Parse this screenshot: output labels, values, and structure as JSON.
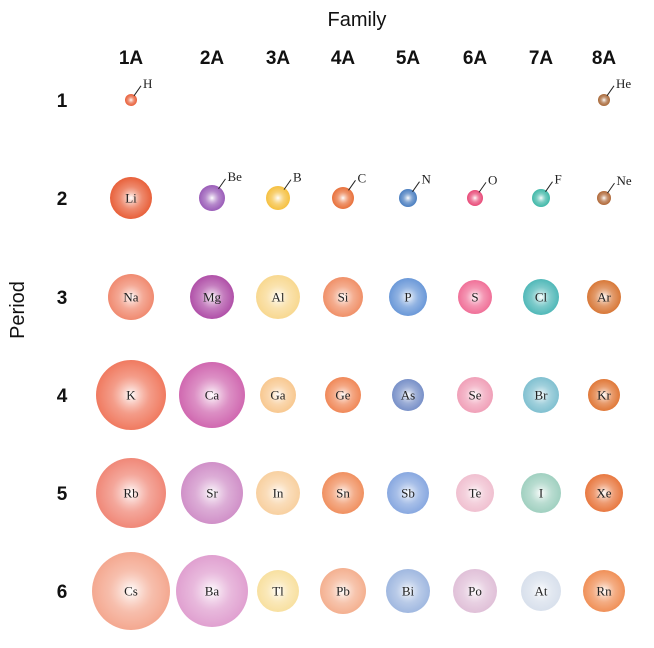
{
  "x_axis_title": "Family",
  "y_axis_title": "Period",
  "families": [
    "1A",
    "2A",
    "3A",
    "4A",
    "5A",
    "6A",
    "7A",
    "8A"
  ],
  "periods": [
    "1",
    "2",
    "3",
    "4",
    "5",
    "6"
  ],
  "elements": [
    [
      {
        "symbol": "H",
        "color": "#e8603a"
      },
      null,
      null,
      null,
      null,
      null,
      null,
      {
        "symbol": "He",
        "color": "#a86838"
      }
    ],
    [
      {
        "symbol": "Li",
        "color": "#e8603a"
      },
      {
        "symbol": "Be",
        "color": "#9a5cb8"
      },
      {
        "symbol": "B",
        "color": "#f5c040"
      },
      {
        "symbol": "C",
        "color": "#e8703a"
      },
      {
        "symbol": "N",
        "color": "#4a7ec0"
      },
      {
        "symbol": "O",
        "color": "#e84a78"
      },
      {
        "symbol": "F",
        "color": "#40b8a8"
      },
      {
        "symbol": "Ne",
        "color": "#b06838"
      }
    ],
    [
      {
        "symbol": "Na",
        "color": "#f08a70"
      },
      {
        "symbol": "Mg",
        "color": "#b050a8"
      },
      {
        "symbol": "Al",
        "color": "#f8d890"
      },
      {
        "symbol": "Si",
        "color": "#f09068"
      },
      {
        "symbol": "P",
        "color": "#6a98d8"
      },
      {
        "symbol": "S",
        "color": "#f07098"
      },
      {
        "symbol": "Cl",
        "color": "#50b8b8"
      },
      {
        "symbol": "Ar",
        "color": "#d87838"
      }
    ],
    [
      {
        "symbol": "K",
        "color": "#f07a60"
      },
      {
        "symbol": "Ca",
        "color": "#d068b0"
      },
      {
        "symbol": "Ga",
        "color": "#f8c890"
      },
      {
        "symbol": "Ge",
        "color": "#f08858"
      },
      {
        "symbol": "As",
        "color": "#7890c8"
      },
      {
        "symbol": "Se",
        "color": "#f0a0b8"
      },
      {
        "symbol": "Br",
        "color": "#80c0d0"
      },
      {
        "symbol": "Kr",
        "color": "#e07838"
      }
    ],
    [
      {
        "symbol": "Rb",
        "color": "#f08878"
      },
      {
        "symbol": "Sr",
        "color": "#d090c8"
      },
      {
        "symbol": "In",
        "color": "#f8d0a0"
      },
      {
        "symbol": "Sn",
        "color": "#f09060"
      },
      {
        "symbol": "Sb",
        "color": "#88a8e0"
      },
      {
        "symbol": "Te",
        "color": "#f0c0d0"
      },
      {
        "symbol": "I",
        "color": "#a0d0c0"
      },
      {
        "symbol": "Xe",
        "color": "#e87840"
      }
    ],
    [
      {
        "symbol": "Cs",
        "color": "#f4a890"
      },
      {
        "symbol": "Ba",
        "color": "#e0a0d0"
      },
      {
        "symbol": "Tl",
        "color": "#f8e0a0"
      },
      {
        "symbol": "Pb",
        "color": "#f4b090"
      },
      {
        "symbol": "Bi",
        "color": "#a0b8e0"
      },
      {
        "symbol": "Po",
        "color": "#e0c0d8"
      },
      {
        "symbol": "At",
        "color": "#d8e0ec"
      },
      {
        "symbol": "Rn",
        "color": "#f09058"
      }
    ]
  ]
}
